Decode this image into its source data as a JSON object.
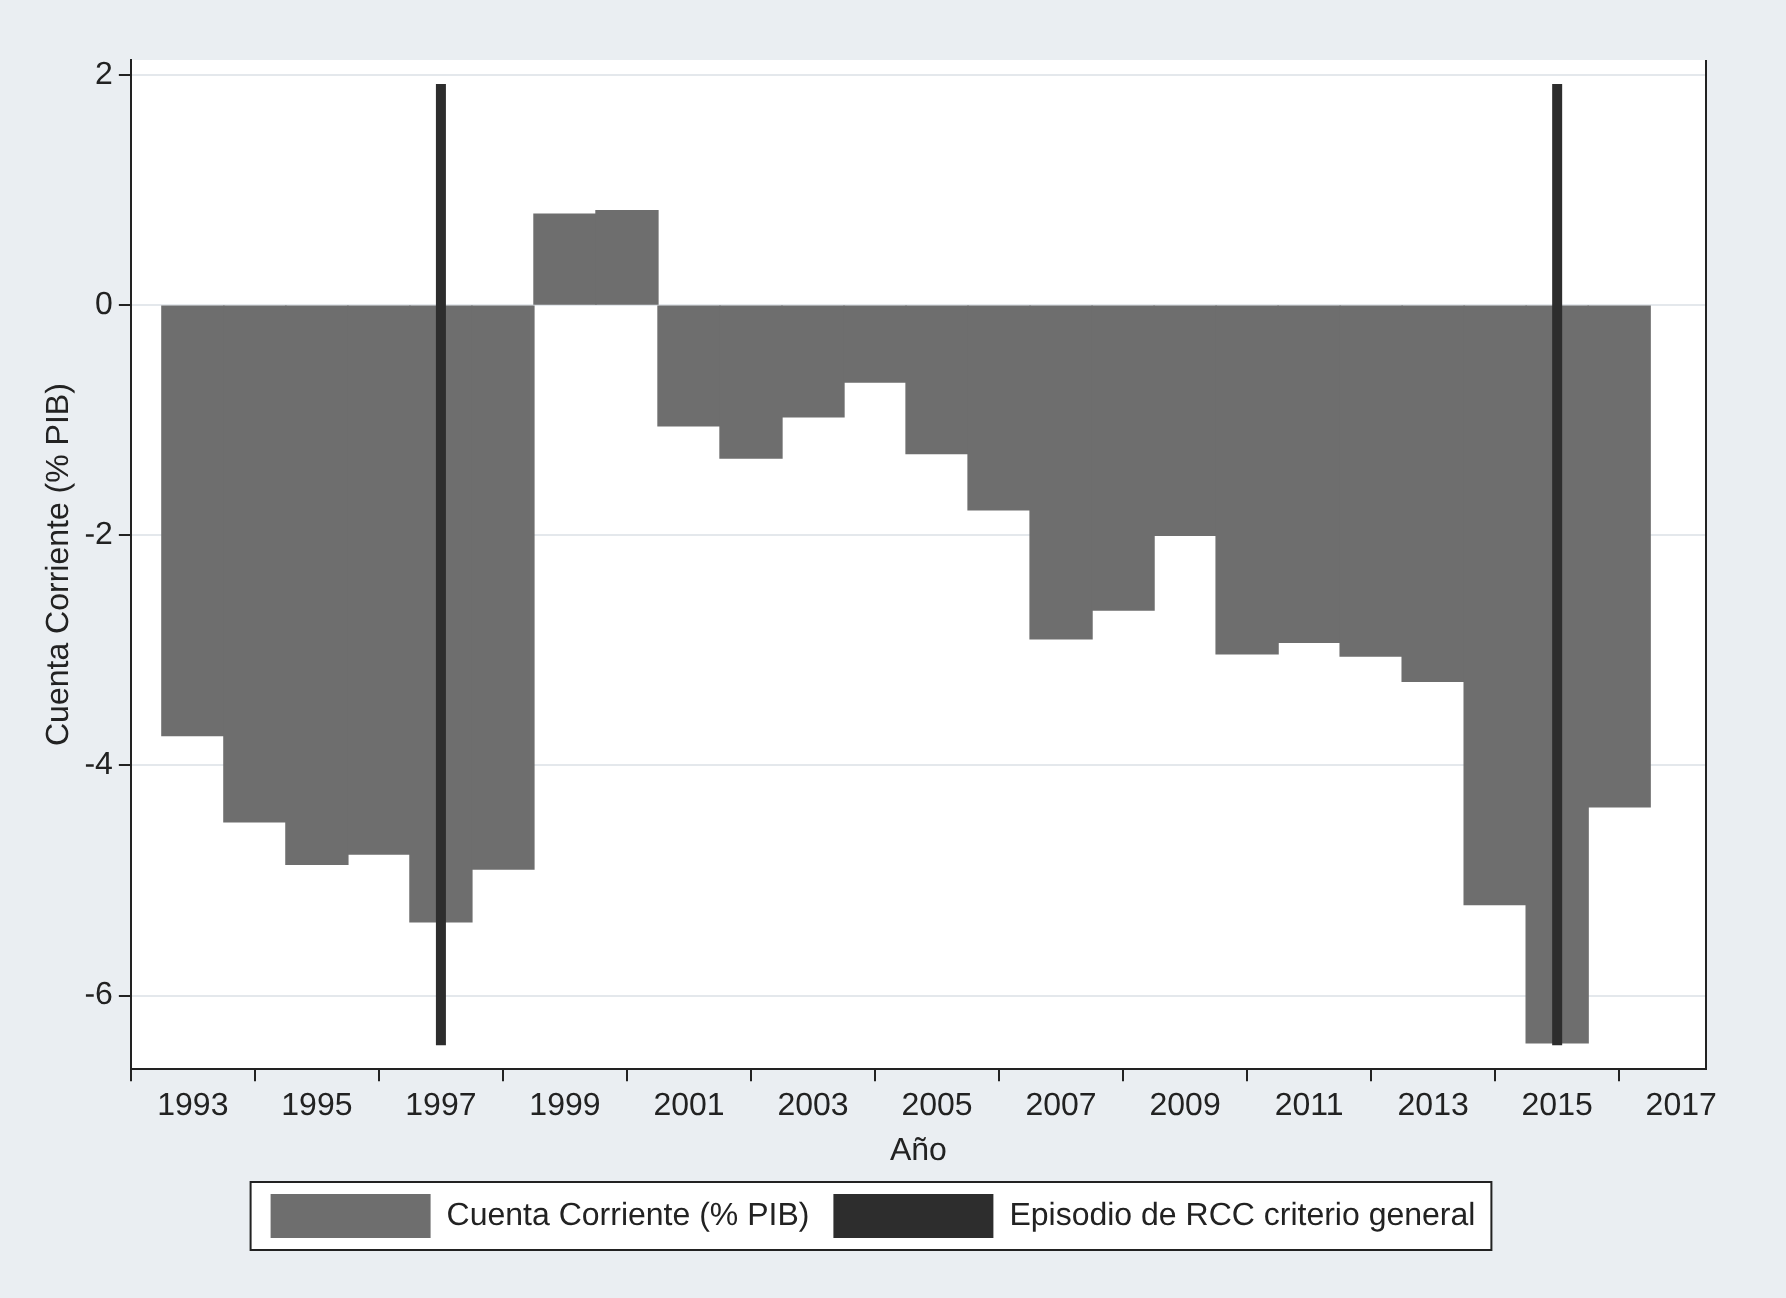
{
  "chart_data": {
    "type": "bar",
    "xlabel": "Año",
    "ylabel": "Cuenta Corriente (% PIB)",
    "x": [
      1993,
      1994,
      1995,
      1996,
      1997,
      1998,
      1999,
      2000,
      2001,
      2002,
      2003,
      2004,
      2005,
      2006,
      2007,
      2008,
      2009,
      2010,
      2011,
      2012,
      2013,
      2014,
      2015,
      2016
    ],
    "series": [
      {
        "name": "Cuenta Corriente (% PIB)",
        "color": "#6e6e6e",
        "values": [
          -3.74,
          -4.49,
          -4.86,
          -4.77,
          -5.36,
          -4.9,
          0.79,
          0.82,
          -1.05,
          -1.33,
          -0.97,
          -0.67,
          -1.29,
          -1.78,
          -2.9,
          -2.65,
          -2.0,
          -3.03,
          -2.93,
          -3.05,
          -3.27,
          -5.21,
          -6.41,
          -4.36
        ]
      }
    ],
    "ref_lines": [
      {
        "axis": "x",
        "value": 1997,
        "label": "Episodio de RCC criterio general",
        "color": "#2d2d2d"
      },
      {
        "axis": "x",
        "value": 2015,
        "color": "#2d2d2d"
      }
    ],
    "xlim": [
      1992,
      2017.4
    ],
    "xticks": [
      1993,
      1995,
      1997,
      1999,
      2001,
      2003,
      2005,
      2007,
      2009,
      2011,
      2013,
      2015,
      2017
    ],
    "ylim": [
      -6.64,
      2.13
    ],
    "yticks": [
      -6,
      -4,
      -2,
      0,
      2
    ],
    "grid": "y",
    "legend": "bottom"
  }
}
